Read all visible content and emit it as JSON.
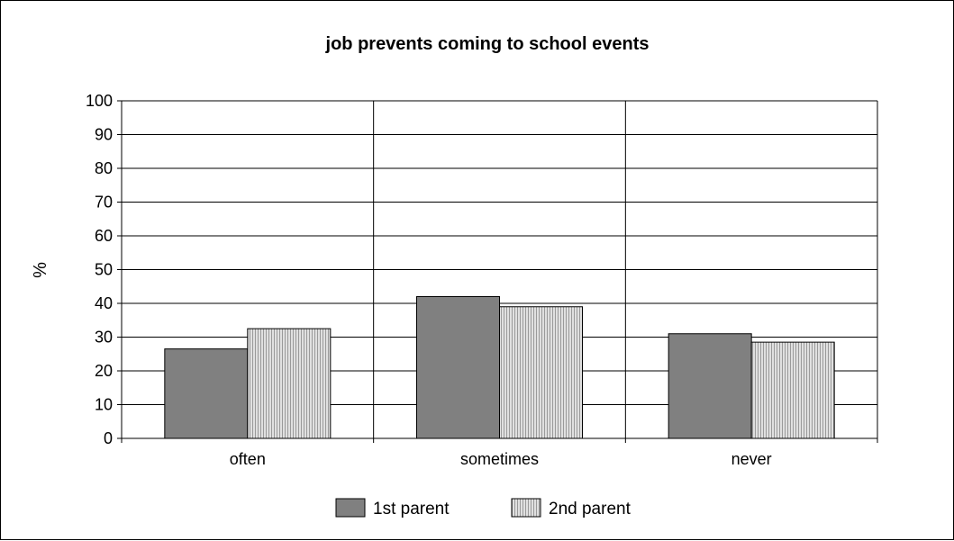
{
  "chart_data": {
    "type": "bar",
    "title": "job prevents coming to school events",
    "xlabel": "",
    "ylabel": "%",
    "ylim": [
      0,
      100
    ],
    "yticks": [
      0,
      10,
      20,
      30,
      40,
      50,
      60,
      70,
      80,
      90,
      100
    ],
    "categories": [
      "often",
      "sometimes",
      "never"
    ],
    "series": [
      {
        "name": "1st parent",
        "values": [
          26.5,
          42,
          31
        ],
        "color": "#808080",
        "pattern": "solid"
      },
      {
        "name": "2nd parent",
        "values": [
          32.5,
          39,
          28.5
        ],
        "color": "#c0c0c0",
        "pattern": "vertical-stripes"
      }
    ],
    "grid": true,
    "legend": "bottom"
  }
}
